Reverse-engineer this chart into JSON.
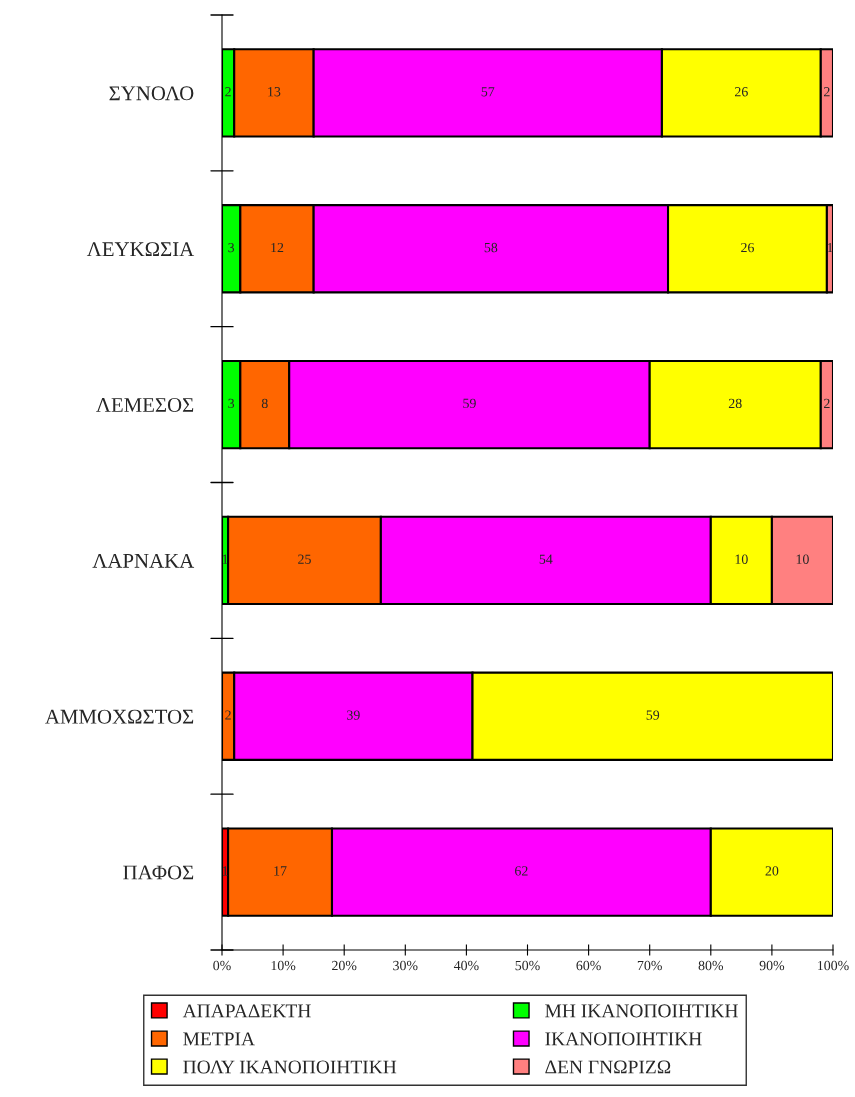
{
  "chart_data": {
    "type": "bar",
    "orientation": "horizontal",
    "stacked": true,
    "data_labels": true,
    "grid": false,
    "legend": "bottom",
    "categories": [
      "ΣΥΝΟΛΟ",
      "ΛΕΥΚΩΣΙΑ",
      "ΛΕΜΕΣΟΣ",
      "ΛΑΡΝΑΚΑ",
      "ΑΜΜΟΧΩΣΤΟΣ",
      "ΠΑΦΟΣ"
    ],
    "series": [
      {
        "name": "ΑΠΑΡΑΔΕΚΤΗ",
        "color": "#ff0000",
        "values": [
          null,
          null,
          null,
          null,
          null,
          1
        ]
      },
      {
        "name": "ΜΗ ΙΚΑΝΟΠΟΙΗΤΙΚΗ",
        "color": "#00ff00",
        "values": [
          2,
          3,
          3,
          1,
          null,
          null
        ]
      },
      {
        "name": "ΜΕΤΡΙΑ",
        "color": "#ff6600",
        "values": [
          13,
          12,
          8,
          25,
          2,
          17
        ]
      },
      {
        "name": "ΙΚΑΝΟΠΟΙΗΤΙΚΗ",
        "color": "#ff00ff",
        "values": [
          57,
          58,
          59,
          54,
          39,
          62
        ]
      },
      {
        "name": "ΠΟΛΥ ΙΚΑΝΟΠΟΙΗΤΙΚΗ",
        "color": "#ffff00",
        "values": [
          26,
          26,
          28,
          10,
          59,
          20
        ]
      },
      {
        "name": "ΔΕΝ ΓΝΩΡΙΖΩ",
        "color": "#ff8080",
        "values": [
          2,
          1,
          2,
          10,
          null,
          null
        ]
      }
    ],
    "xlim": [
      0,
      100
    ],
    "xticks": [
      {
        "value": 0,
        "label": "0%"
      },
      {
        "value": 10,
        "label": "10%"
      },
      {
        "value": 20,
        "label": "20%"
      },
      {
        "value": 30,
        "label": "30%"
      },
      {
        "value": 40,
        "label": "40%"
      },
      {
        "value": 50,
        "label": "50%"
      },
      {
        "value": 60,
        "label": "60%"
      },
      {
        "value": 70,
        "label": "70%"
      },
      {
        "value": 80,
        "label": "80%"
      },
      {
        "value": 90,
        "label": "90%"
      },
      {
        "value": 100,
        "label": "100%"
      }
    ]
  }
}
